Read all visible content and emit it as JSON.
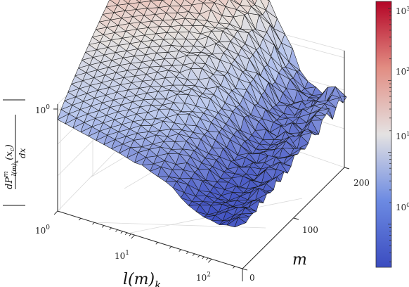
{
  "chart_data": {
    "type": "surface",
    "z_scale": "log",
    "x_scale": "log",
    "grid": true,
    "colormap": [
      "#3b4cc0",
      "#b7c6ee",
      "#e7e3e0",
      "#eeb2a6",
      "#b40426"
    ],
    "colorbar_position": "right",
    "axes": {
      "x": {
        "label": "l(m)",
        "label_sub": "k",
        "ticks": [
          {
            "base": "10",
            "exp": "0"
          },
          {
            "base": "10",
            "exp": "1"
          },
          {
            "base": "10",
            "exp": "2"
          }
        ]
      },
      "y": {
        "label": "m",
        "ticks": [
          "0",
          "100",
          "200"
        ],
        "range": [
          0,
          200
        ]
      },
      "z": {
        "label_num_main": "dP",
        "label_num_sup": "m",
        "label_num_sub": "l(m)",
        "label_num_sub2": "k",
        "label_num_tail": "(x",
        "label_num_tail_sub": "c",
        "label_num_close": ")",
        "label_den": "dx",
        "ticks": [
          {
            "base": "10",
            "exp": "0"
          }
        ]
      }
    },
    "colorbar": {
      "ticks": [
        {
          "base": "10",
          "exp": "0"
        },
        {
          "base": "10",
          "exp": "1"
        },
        {
          "base": "10",
          "exp": "2"
        },
        {
          "base": "10",
          "exp": "3"
        }
      ]
    }
  }
}
